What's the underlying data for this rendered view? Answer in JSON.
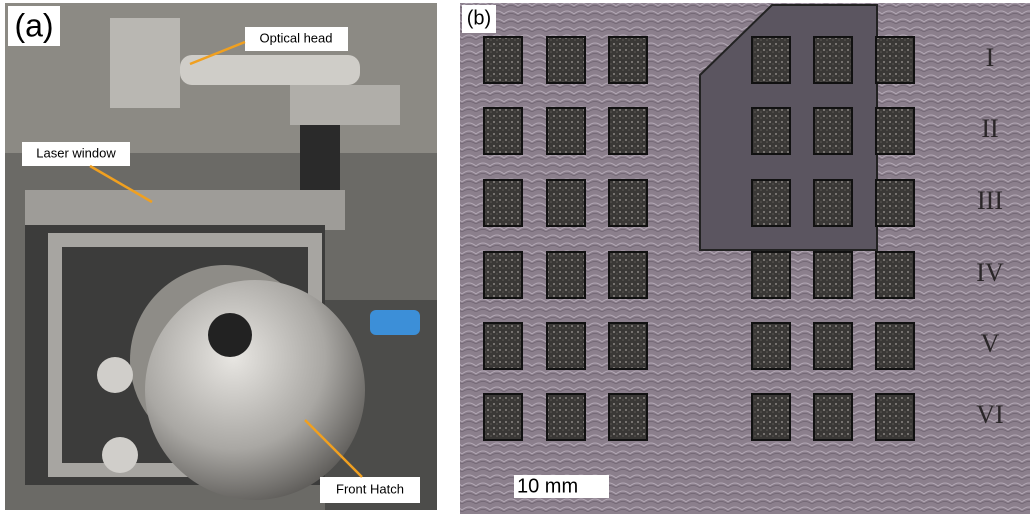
{
  "panel_a": {
    "label": "(a)",
    "annotations": [
      "Optical head",
      "Laser window",
      "Front Hatch"
    ]
  },
  "panel_b": {
    "label": "(b)",
    "scale_bar": "10 mm",
    "row_labels": [
      "I",
      "II",
      "III",
      "IV",
      "V",
      "VI"
    ]
  }
}
